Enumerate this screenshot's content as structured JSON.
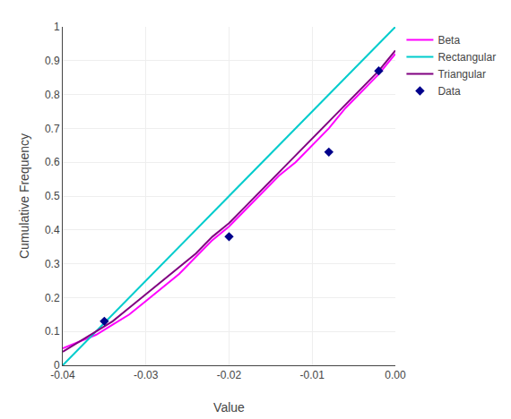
{
  "chart_data": {
    "type": "line",
    "xlabel": "Value",
    "ylabel": "Cumulative Frequency",
    "xlim": [
      -0.04,
      0.0
    ],
    "ylim": [
      0,
      1
    ],
    "xticks": [
      -0.04,
      -0.03,
      -0.02,
      -0.01,
      {
        "value": 0.0,
        "label": "0.00"
      }
    ],
    "yticks": [
      0,
      0.1,
      0.2,
      0.3,
      0.4,
      0.5,
      0.6,
      0.7,
      0.8,
      0.9,
      1
    ],
    "grid": true,
    "series": [
      {
        "name": "Beta",
        "type": "line",
        "color": "#ff00ff",
        "line_style": "solid",
        "x": [
          -0.04,
          -0.038,
          -0.036,
          -0.034,
          -0.032,
          -0.03,
          -0.028,
          -0.026,
          -0.024,
          -0.022,
          -0.02,
          -0.018,
          -0.016,
          -0.014,
          -0.012,
          -0.01,
          -0.008,
          -0.006,
          -0.004,
          -0.002,
          0.0
        ],
        "values": [
          0.05,
          0.07,
          0.09,
          0.12,
          0.15,
          0.19,
          0.23,
          0.27,
          0.32,
          0.37,
          0.41,
          0.46,
          0.51,
          0.56,
          0.6,
          0.65,
          0.7,
          0.76,
          0.81,
          0.86,
          0.92
        ]
      },
      {
        "name": "Rectangular",
        "type": "line",
        "color": "#00cccc",
        "line_style": "solid",
        "x": [
          -0.04,
          -0.035,
          -0.03,
          -0.025,
          -0.02,
          -0.015,
          -0.01,
          -0.005,
          0.0
        ],
        "values": [
          0.0,
          0.125,
          0.25,
          0.375,
          0.5,
          0.625,
          0.75,
          0.875,
          1.0
        ]
      },
      {
        "name": "Triangular",
        "type": "line",
        "color": "#800080",
        "line_style": "solid",
        "x": [
          -0.04,
          -0.038,
          -0.036,
          -0.034,
          -0.032,
          -0.03,
          -0.028,
          -0.026,
          -0.024,
          -0.022,
          -0.02,
          -0.018,
          -0.016,
          -0.014,
          -0.012,
          -0.01,
          -0.008,
          -0.006,
          -0.004,
          -0.002,
          0.0
        ],
        "values": [
          0.04,
          0.07,
          0.1,
          0.13,
          0.17,
          0.21,
          0.25,
          0.29,
          0.33,
          0.38,
          0.42,
          0.47,
          0.52,
          0.57,
          0.62,
          0.67,
          0.72,
          0.77,
          0.82,
          0.87,
          0.93
        ]
      },
      {
        "name": "Data",
        "type": "scatter",
        "color": "#00008B",
        "marker": "diamond",
        "x": [
          -0.035,
          -0.02,
          -0.008,
          -0.002
        ],
        "values": [
          0.13,
          0.38,
          0.63,
          0.87
        ]
      }
    ]
  }
}
